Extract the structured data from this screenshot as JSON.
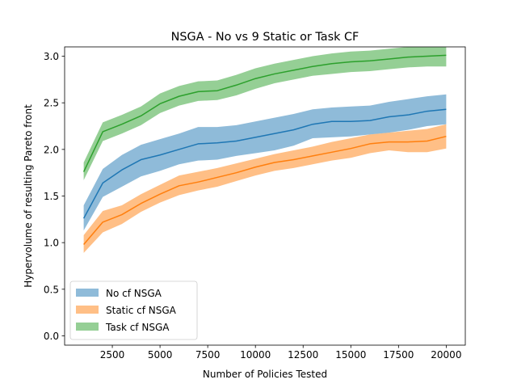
{
  "chart_data": {
    "type": "area",
    "title": "NSGA - No vs 9 Static or Task CF",
    "xlabel": "Number of Policies Tested",
    "ylabel": "Hypervolume of resulting Pareto front",
    "xlim": [
      0,
      21000
    ],
    "ylim": [
      -0.1,
      3.1
    ],
    "xticks": [
      2500,
      5000,
      7500,
      10000,
      12500,
      15000,
      17500,
      20000
    ],
    "xtick_labels": [
      "2500",
      "5000",
      "7500",
      "10000",
      "12500",
      "15000",
      "17500",
      "20000"
    ],
    "yticks": [
      0.0,
      0.5,
      1.0,
      1.5,
      2.0,
      2.5,
      3.0
    ],
    "ytick_labels": [
      "0.0",
      "0.5",
      "1.0",
      "1.5",
      "2.0",
      "2.5",
      "3.0"
    ],
    "grid": false,
    "legend_position": "lower-left",
    "x": [
      1000,
      2000,
      3000,
      4000,
      5000,
      6000,
      7000,
      8000,
      9000,
      10000,
      11000,
      12000,
      13000,
      14000,
      15000,
      16000,
      17000,
      18000,
      19000,
      20000
    ],
    "series": [
      {
        "name": "No cf NSGA",
        "line_color": "#1f77b4",
        "fill_color": "#1f77b4",
        "mean": [
          1.26,
          1.64,
          1.78,
          1.89,
          1.94,
          2.0,
          2.06,
          2.07,
          2.09,
          2.13,
          2.17,
          2.21,
          2.27,
          2.3,
          2.3,
          2.31,
          2.35,
          2.37,
          2.41,
          2.43
        ],
        "lower": [
          1.13,
          1.49,
          1.6,
          1.71,
          1.77,
          1.84,
          1.88,
          1.89,
          1.93,
          1.96,
          1.99,
          2.04,
          2.12,
          2.13,
          2.14,
          2.16,
          2.18,
          2.21,
          2.25,
          2.27
        ],
        "upper": [
          1.4,
          1.79,
          1.94,
          2.05,
          2.11,
          2.17,
          2.24,
          2.24,
          2.26,
          2.3,
          2.34,
          2.38,
          2.43,
          2.45,
          2.46,
          2.47,
          2.51,
          2.54,
          2.57,
          2.59
        ]
      },
      {
        "name": "Static cf NSGA",
        "line_color": "#ff7f0e",
        "fill_color": "#ff7f0e",
        "mean": [
          0.98,
          1.22,
          1.3,
          1.42,
          1.52,
          1.61,
          1.65,
          1.7,
          1.75,
          1.81,
          1.86,
          1.89,
          1.93,
          1.97,
          2.01,
          2.06,
          2.08,
          2.08,
          2.09,
          2.14
        ],
        "lower": [
          0.89,
          1.11,
          1.2,
          1.33,
          1.43,
          1.51,
          1.56,
          1.6,
          1.66,
          1.72,
          1.77,
          1.8,
          1.84,
          1.88,
          1.91,
          1.96,
          1.99,
          1.97,
          1.97,
          2.01
        ],
        "upper": [
          1.08,
          1.34,
          1.4,
          1.52,
          1.62,
          1.72,
          1.76,
          1.8,
          1.85,
          1.9,
          1.95,
          1.99,
          2.03,
          2.08,
          2.12,
          2.16,
          2.18,
          2.2,
          2.22,
          2.27
        ]
      },
      {
        "name": "Task cf NSGA",
        "line_color": "#2ca02c",
        "fill_color": "#2ca02c",
        "mean": [
          1.76,
          2.19,
          2.27,
          2.36,
          2.49,
          2.57,
          2.62,
          2.63,
          2.69,
          2.76,
          2.81,
          2.85,
          2.89,
          2.92,
          2.94,
          2.95,
          2.97,
          2.99,
          3.0,
          3.01
        ],
        "lower": [
          1.67,
          2.09,
          2.17,
          2.26,
          2.39,
          2.47,
          2.52,
          2.53,
          2.58,
          2.65,
          2.71,
          2.75,
          2.79,
          2.81,
          2.83,
          2.84,
          2.86,
          2.88,
          2.89,
          2.89
        ],
        "upper": [
          1.86,
          2.29,
          2.37,
          2.46,
          2.6,
          2.68,
          2.73,
          2.74,
          2.8,
          2.87,
          2.92,
          2.96,
          3.0,
          3.03,
          3.05,
          3.06,
          3.08,
          3.1,
          3.11,
          3.12
        ]
      }
    ]
  }
}
